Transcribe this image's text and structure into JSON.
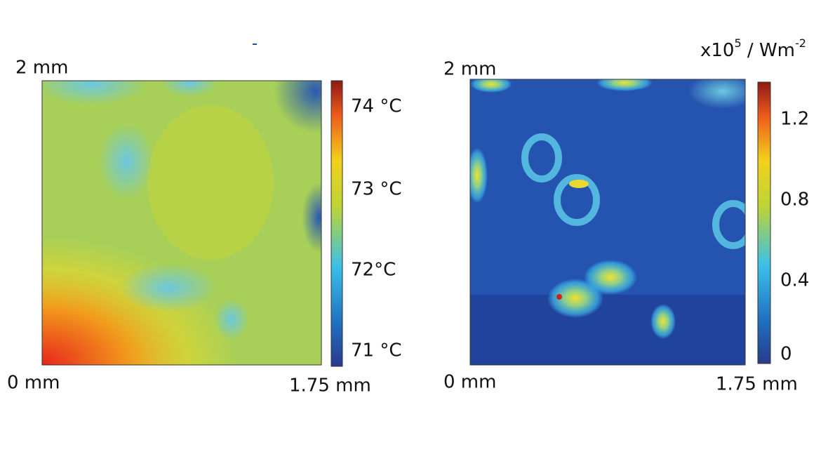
{
  "figure": {
    "panels": [
      {
        "y_top_label": "2 mm",
        "x_left_label": "0 mm",
        "x_right_label": "1.75 mm",
        "colorbar_labels": [
          "74 °C",
          "73 °C",
          "72°C",
          "71 °C"
        ]
      },
      {
        "y_top_label": "2 mm",
        "x_left_label": "0 mm",
        "x_right_label": "1.75 mm",
        "unit": {
          "base": "x10",
          "exp": "5",
          "mid": " / Wm",
          "exp2": "-2"
        },
        "colorbar_labels": [
          "1.2",
          "0.8",
          "0.4",
          "0"
        ]
      }
    ]
  }
}
